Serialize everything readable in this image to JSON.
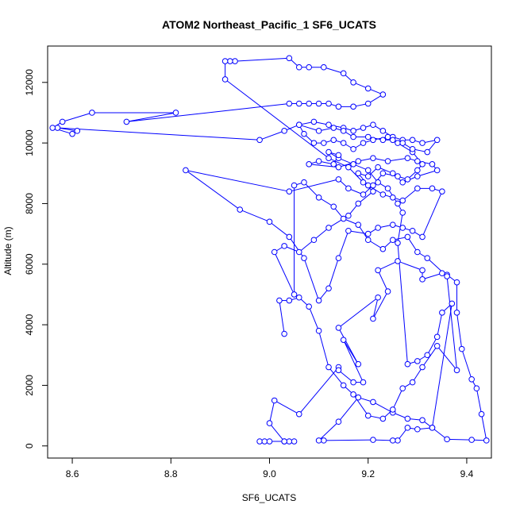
{
  "chart_data": {
    "type": "line",
    "title": "ATOM2 Northeast_Pacific_1 SF6_UCATS",
    "xlabel": "SF6_UCATS",
    "ylabel": "Altitude (m)",
    "xlim": [
      8.55,
      9.45
    ],
    "ylim": [
      -400,
      13200
    ],
    "xticks": [
      8.6,
      8.8,
      9.0,
      9.2,
      9.4
    ],
    "xtick_labels": [
      "8.6",
      "8.8",
      "9.0",
      "9.2",
      "9.4"
    ],
    "yticks": [
      0,
      2000,
      4000,
      6000,
      8000,
      10000,
      12000
    ],
    "ytick_labels": [
      "0",
      "2000",
      "4000",
      "6000",
      "8000",
      "10000",
      "12000"
    ],
    "grid": false,
    "legend": "none",
    "style": {
      "line_color": "#0000ff",
      "marker": "open-circle"
    },
    "series": [
      {
        "points": [
          [
            8.98,
            150
          ],
          [
            8.99,
            150
          ],
          [
            9.0,
            150
          ],
          [
            9.03,
            150
          ],
          [
            9.04,
            150
          ],
          [
            9.05,
            150
          ],
          [
            9.03,
            150
          ],
          [
            9.0,
            750
          ],
          [
            9.01,
            1500
          ],
          [
            9.06,
            1050
          ],
          [
            9.14,
            2600
          ],
          [
            9.14,
            2500
          ],
          [
            9.17,
            2100
          ],
          [
            9.19,
            2100
          ],
          [
            9.15,
            3500
          ],
          [
            9.18,
            2700
          ],
          [
            9.14,
            3900
          ],
          [
            9.22,
            4900
          ],
          [
            9.21,
            4200
          ],
          [
            9.24,
            5100
          ],
          [
            9.22,
            5800
          ],
          [
            9.26,
            6100
          ],
          [
            9.31,
            5800
          ],
          [
            9.31,
            5500
          ],
          [
            9.35,
            5700
          ],
          [
            9.36,
            5650
          ],
          [
            9.38,
            5400
          ],
          [
            9.38,
            4400
          ],
          [
            9.39,
            3200
          ],
          [
            9.41,
            2200
          ],
          [
            9.42,
            1900
          ],
          [
            9.43,
            1050
          ],
          [
            9.44,
            180
          ],
          [
            9.41,
            200
          ],
          [
            9.36,
            220
          ],
          [
            9.33,
            600
          ],
          [
            9.3,
            550
          ],
          [
            9.28,
            600
          ],
          [
            9.26,
            180
          ],
          [
            9.25,
            180
          ],
          [
            9.21,
            200
          ],
          [
            9.11,
            180
          ],
          [
            9.1,
            180
          ],
          [
            9.14,
            800
          ],
          [
            9.18,
            1600
          ],
          [
            9.21,
            1450
          ],
          [
            9.25,
            1100
          ],
          [
            9.28,
            900
          ],
          [
            9.31,
            850
          ],
          [
            9.33,
            600
          ],
          [
            9.37,
            4700
          ],
          [
            9.35,
            4400
          ],
          [
            9.34,
            3600
          ],
          [
            9.32,
            3000
          ],
          [
            9.3,
            2800
          ],
          [
            9.28,
            2700
          ],
          [
            9.26,
            6700
          ],
          [
            9.27,
            7700
          ],
          [
            9.26,
            8000
          ],
          [
            9.24,
            8500
          ],
          [
            9.22,
            8700
          ],
          [
            9.2,
            9100
          ],
          [
            9.17,
            9300
          ],
          [
            9.14,
            9500
          ],
          [
            9.12,
            9700
          ],
          [
            9.14,
            9600
          ],
          [
            9.13,
            9300
          ],
          [
            9.1,
            9400
          ],
          [
            9.08,
            9300
          ],
          [
            9.14,
            9200
          ],
          [
            9.18,
            9400
          ],
          [
            9.21,
            9500
          ],
          [
            9.24,
            9400
          ],
          [
            9.28,
            9500
          ],
          [
            9.3,
            9400
          ],
          [
            9.33,
            9300
          ],
          [
            9.34,
            9100
          ],
          [
            9.3,
            8900
          ],
          [
            9.27,
            8700
          ],
          [
            9.25,
            9000
          ],
          [
            9.22,
            9200
          ],
          [
            9.2,
            8900
          ],
          [
            9.18,
            9000
          ],
          [
            9.2,
            8600
          ],
          [
            9.23,
            8300
          ],
          [
            9.25,
            8200
          ],
          [
            9.27,
            8100
          ],
          [
            9.3,
            8500
          ],
          [
            9.33,
            8500
          ],
          [
            9.35,
            8400
          ],
          [
            9.31,
            6900
          ],
          [
            9.29,
            7100
          ],
          [
            9.27,
            7200
          ],
          [
            9.25,
            7300
          ],
          [
            9.22,
            7200
          ],
          [
            9.2,
            7000
          ],
          [
            9.16,
            7100
          ],
          [
            9.14,
            6200
          ],
          [
            9.12,
            5200
          ],
          [
            9.1,
            4800
          ],
          [
            9.07,
            6200
          ],
          [
            9.04,
            6900
          ],
          [
            9.0,
            7400
          ],
          [
            8.94,
            7800
          ],
          [
            8.83,
            9100
          ],
          [
            9.04,
            8400
          ],
          [
            9.14,
            8800
          ],
          [
            9.16,
            8500
          ],
          [
            9.19,
            8300
          ],
          [
            9.21,
            8600
          ],
          [
            9.23,
            9000
          ],
          [
            9.26,
            8900
          ],
          [
            9.28,
            8800
          ],
          [
            9.3,
            9100
          ],
          [
            9.31,
            9300
          ],
          [
            9.29,
            9700
          ],
          [
            9.26,
            10000
          ],
          [
            9.24,
            10200
          ],
          [
            9.21,
            10100
          ],
          [
            9.19,
            10000
          ],
          [
            9.17,
            9800
          ],
          [
            9.15,
            10000
          ],
          [
            9.13,
            10100
          ],
          [
            9.11,
            10000
          ],
          [
            9.09,
            10000
          ],
          [
            9.07,
            10300
          ],
          [
            9.06,
            10600
          ],
          [
            9.09,
            10700
          ],
          [
            9.12,
            10600
          ],
          [
            9.15,
            10500
          ],
          [
            9.17,
            10400
          ],
          [
            9.19,
            10500
          ],
          [
            9.21,
            10600
          ],
          [
            9.23,
            10400
          ],
          [
            9.25,
            10200
          ],
          [
            9.27,
            10100
          ],
          [
            9.29,
            10100
          ],
          [
            9.31,
            10000
          ],
          [
            9.34,
            10100
          ],
          [
            9.32,
            9700
          ],
          [
            9.29,
            9800
          ],
          [
            9.27,
            10000
          ],
          [
            9.25,
            10100
          ],
          [
            9.23,
            10100
          ],
          [
            9.2,
            10200
          ],
          [
            9.17,
            10200
          ],
          [
            9.15,
            10400
          ],
          [
            9.13,
            10500
          ],
          [
            9.1,
            10400
          ],
          [
            9.06,
            10600
          ],
          [
            9.03,
            10400
          ],
          [
            8.98,
            10100
          ],
          [
            8.57,
            10500
          ],
          [
            8.61,
            10400
          ],
          [
            8.6,
            10300
          ],
          [
            8.56,
            10500
          ],
          [
            8.58,
            10700
          ],
          [
            8.64,
            11000
          ],
          [
            8.81,
            11000
          ],
          [
            8.71,
            10700
          ],
          [
            9.04,
            11300
          ],
          [
            9.06,
            11300
          ],
          [
            9.08,
            11300
          ],
          [
            9.1,
            11300
          ],
          [
            9.12,
            11300
          ],
          [
            9.14,
            11200
          ],
          [
            9.17,
            11200
          ],
          [
            9.2,
            11300
          ],
          [
            9.23,
            11600
          ],
          [
            9.2,
            11800
          ],
          [
            9.17,
            12000
          ],
          [
            9.15,
            12300
          ],
          [
            9.11,
            12500
          ],
          [
            9.08,
            12500
          ],
          [
            9.06,
            12500
          ],
          [
            9.04,
            12800
          ],
          [
            8.93,
            12700
          ],
          [
            8.92,
            12700
          ],
          [
            8.91,
            12700
          ],
          [
            8.91,
            12100
          ],
          [
            9.12,
            9500
          ],
          [
            9.16,
            9200
          ],
          [
            9.19,
            8700
          ],
          [
            9.21,
            8400
          ],
          [
            9.18,
            8000
          ],
          [
            9.16,
            7600
          ],
          [
            9.12,
            7200
          ],
          [
            9.09,
            6800
          ],
          [
            9.06,
            6400
          ],
          [
            9.03,
            6600
          ],
          [
            9.01,
            6400
          ],
          [
            9.05,
            5000
          ],
          [
            9.05,
            8600
          ],
          [
            9.07,
            8700
          ],
          [
            9.1,
            8200
          ],
          [
            9.13,
            7900
          ],
          [
            9.15,
            7500
          ],
          [
            9.18,
            7300
          ],
          [
            9.2,
            6800
          ],
          [
            9.23,
            6500
          ],
          [
            9.25,
            6800
          ],
          [
            9.28,
            6900
          ],
          [
            9.3,
            6400
          ],
          [
            9.32,
            6200
          ],
          [
            9.36,
            5600
          ],
          [
            9.38,
            2500
          ],
          [
            9.34,
            3300
          ],
          [
            9.31,
            2600
          ],
          [
            9.29,
            2100
          ],
          [
            9.27,
            1900
          ],
          [
            9.25,
            1200
          ],
          [
            9.23,
            900
          ],
          [
            9.2,
            1000
          ],
          [
            9.17,
            1700
          ],
          [
            9.15,
            2000
          ],
          [
            9.12,
            2600
          ],
          [
            9.1,
            3800
          ],
          [
            9.08,
            4600
          ],
          [
            9.06,
            4900
          ],
          [
            9.04,
            4800
          ],
          [
            9.02,
            4800
          ],
          [
            9.03,
            3700
          ]
        ]
      }
    ]
  }
}
